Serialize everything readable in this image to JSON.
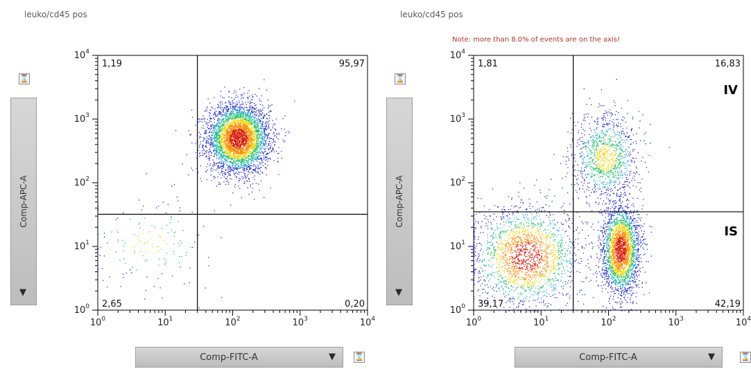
{
  "panels": [
    {
      "gate_title": "leuko/cd45 pos",
      "note": "",
      "x_param": "Comp-FITC-A",
      "y_param": "Comp-APC-A",
      "dropdown_arrow": "▼",
      "axis_icon": "⌛",
      "axis_icon_name": "scale-toggle-icon",
      "quadrants": {
        "top_left": "1,19",
        "top_right": "95,97",
        "bottom_left": "2,65",
        "bottom_right": "0,20"
      },
      "region_labels": []
    },
    {
      "gate_title": "leuko/cd45 pos",
      "note": "Note: more than 8.0% of events are on the axis!",
      "x_param": "Comp-FITC-A",
      "y_param": "Comp-APC-A",
      "dropdown_arrow": "▼",
      "axis_icon": "⌛",
      "axis_icon_name": "scale-toggle-icon",
      "quadrants": {
        "top_left": "1,81",
        "top_right": "16,83",
        "bottom_left": "39,17",
        "bottom_right": "42,19"
      },
      "region_labels": [
        "IV",
        "IS"
      ]
    }
  ],
  "chart_data": [
    {
      "type": "scatter",
      "title": "",
      "xlabel": "Comp-FITC-A",
      "ylabel": "Comp-APC-A",
      "x_scale": "log",
      "y_scale": "log",
      "xlim": [
        1,
        10000
      ],
      "ylim": [
        1,
        10000
      ],
      "x_ticks": [
        "10^0",
        "10^1",
        "10^2",
        "10^3",
        "10^4"
      ],
      "y_ticks": [
        "10^0",
        "10^1",
        "10^2",
        "10^3",
        "10^4"
      ],
      "quadrant_gate": {
        "x": 30,
        "y": 32
      },
      "quadrant_percentages": {
        "top_left": 1.19,
        "top_right": 95.97,
        "bottom_left": 2.65,
        "bottom_right": 0.2
      },
      "populations": [
        {
          "center": [
            120,
            500
          ],
          "spread_log10": [
            0.23,
            0.27
          ],
          "events": 4200
        },
        {
          "center": [
            6,
            12
          ],
          "spread_log10": [
            0.45,
            0.35
          ],
          "events": 160
        }
      ],
      "density_coloring": true,
      "grid": false,
      "legend": "none"
    },
    {
      "type": "scatter",
      "title": "",
      "xlabel": "Comp-FITC-A",
      "ylabel": "Comp-APC-A",
      "x_scale": "log",
      "y_scale": "log",
      "xlim": [
        1,
        10000
      ],
      "ylim": [
        1,
        10000
      ],
      "x_ticks": [
        "10^0",
        "10^1",
        "10^2",
        "10^3",
        "10^4"
      ],
      "y_ticks": [
        "10^0",
        "10^1",
        "10^2",
        "10^3",
        "10^4"
      ],
      "quadrant_gate": {
        "x": 30,
        "y": 35
      },
      "quadrant_percentages": {
        "top_left": 1.81,
        "top_right": 16.83,
        "bottom_left": 39.17,
        "bottom_right": 42.19
      },
      "populations": [
        {
          "center": [
            90,
            250
          ],
          "spread_log10": [
            0.25,
            0.35
          ],
          "events": 1100
        },
        {
          "center": [
            150,
            9
          ],
          "spread_log10": [
            0.14,
            0.35
          ],
          "events": 2600
        },
        {
          "center": [
            6,
            7
          ],
          "spread_log10": [
            0.4,
            0.4
          ],
          "events": 2000
        }
      ],
      "density_coloring": true,
      "grid": false,
      "legend": "none"
    }
  ]
}
